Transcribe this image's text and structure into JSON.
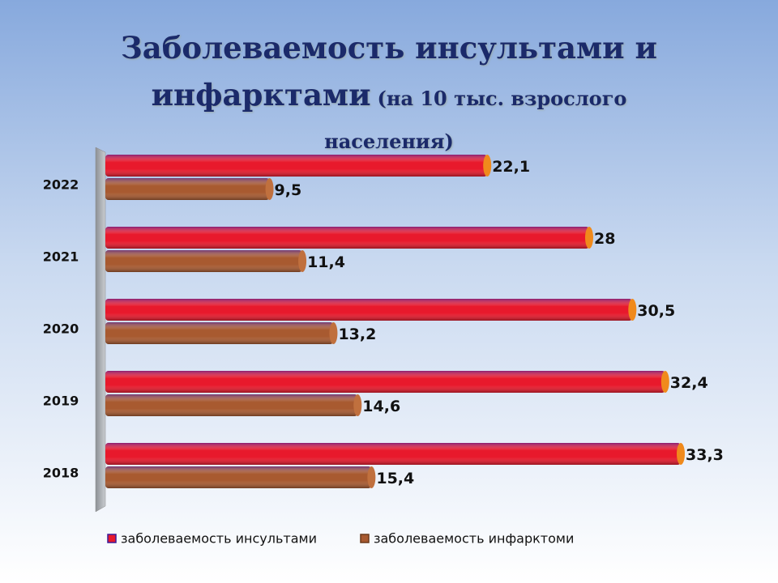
{
  "chart_data": {
    "type": "hbar",
    "title": "Заболеваемость инсультами и инфарктами",
    "subtitle": "(на 10 тыс. взрослого населения)",
    "categories": [
      "2022",
      "2021",
      "2020",
      "2019",
      "2018"
    ],
    "series": [
      {
        "name": "заболеваемость инсультами",
        "color": "#e8192c",
        "values": [
          22.1,
          28,
          30.5,
          32.4,
          33.3
        ],
        "value_labels": [
          "22,1",
          "28",
          "30,5",
          "32,4",
          "33,3"
        ]
      },
      {
        "name": "заболеваемость инфарктоми",
        "color": "#a85a30",
        "values": [
          9.5,
          11.4,
          13.2,
          14.6,
          15.4
        ],
        "value_labels": [
          "9,5",
          "11,4",
          "13,2",
          "14,6",
          "15,4"
        ]
      }
    ]
  }
}
